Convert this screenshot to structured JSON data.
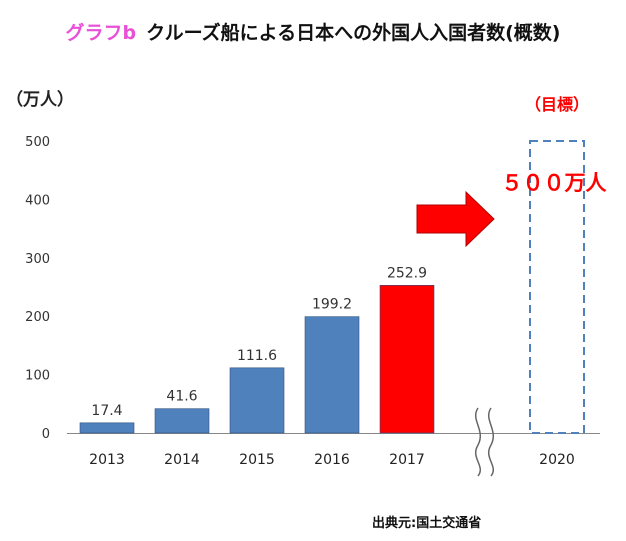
{
  "title": {
    "tag": "グラフb",
    "text": "クルーズ船による日本への外国人入国者数(概数)"
  },
  "source": "出典元:国土交通省",
  "chart_data": {
    "type": "bar",
    "ylabel": "（万人）",
    "ylim": [
      0,
      500
    ],
    "yticks": [
      0,
      100,
      200,
      300,
      400,
      500
    ],
    "grid": false,
    "categories": [
      "2013",
      "2014",
      "2015",
      "2016",
      "2017",
      "2020"
    ],
    "values": [
      17.4,
      41.6,
      111.6,
      199.2,
      252.9,
      null
    ],
    "value_labels": [
      "17.4",
      "41.6",
      "111.6",
      "199.2",
      "252.9",
      ""
    ],
    "bar_colors": [
      "#4f81bd",
      "#4f81bd",
      "#4f81bd",
      "#4f81bd",
      "#ff0000"
    ],
    "axis_break": "between 2017 and 2020",
    "target": {
      "category": "2020",
      "value": 500,
      "header": "（目標）",
      "label": "５００万人",
      "color": "#ff0000",
      "outline_color": "#4f81bd"
    },
    "arrow_color": "#ff0000"
  }
}
